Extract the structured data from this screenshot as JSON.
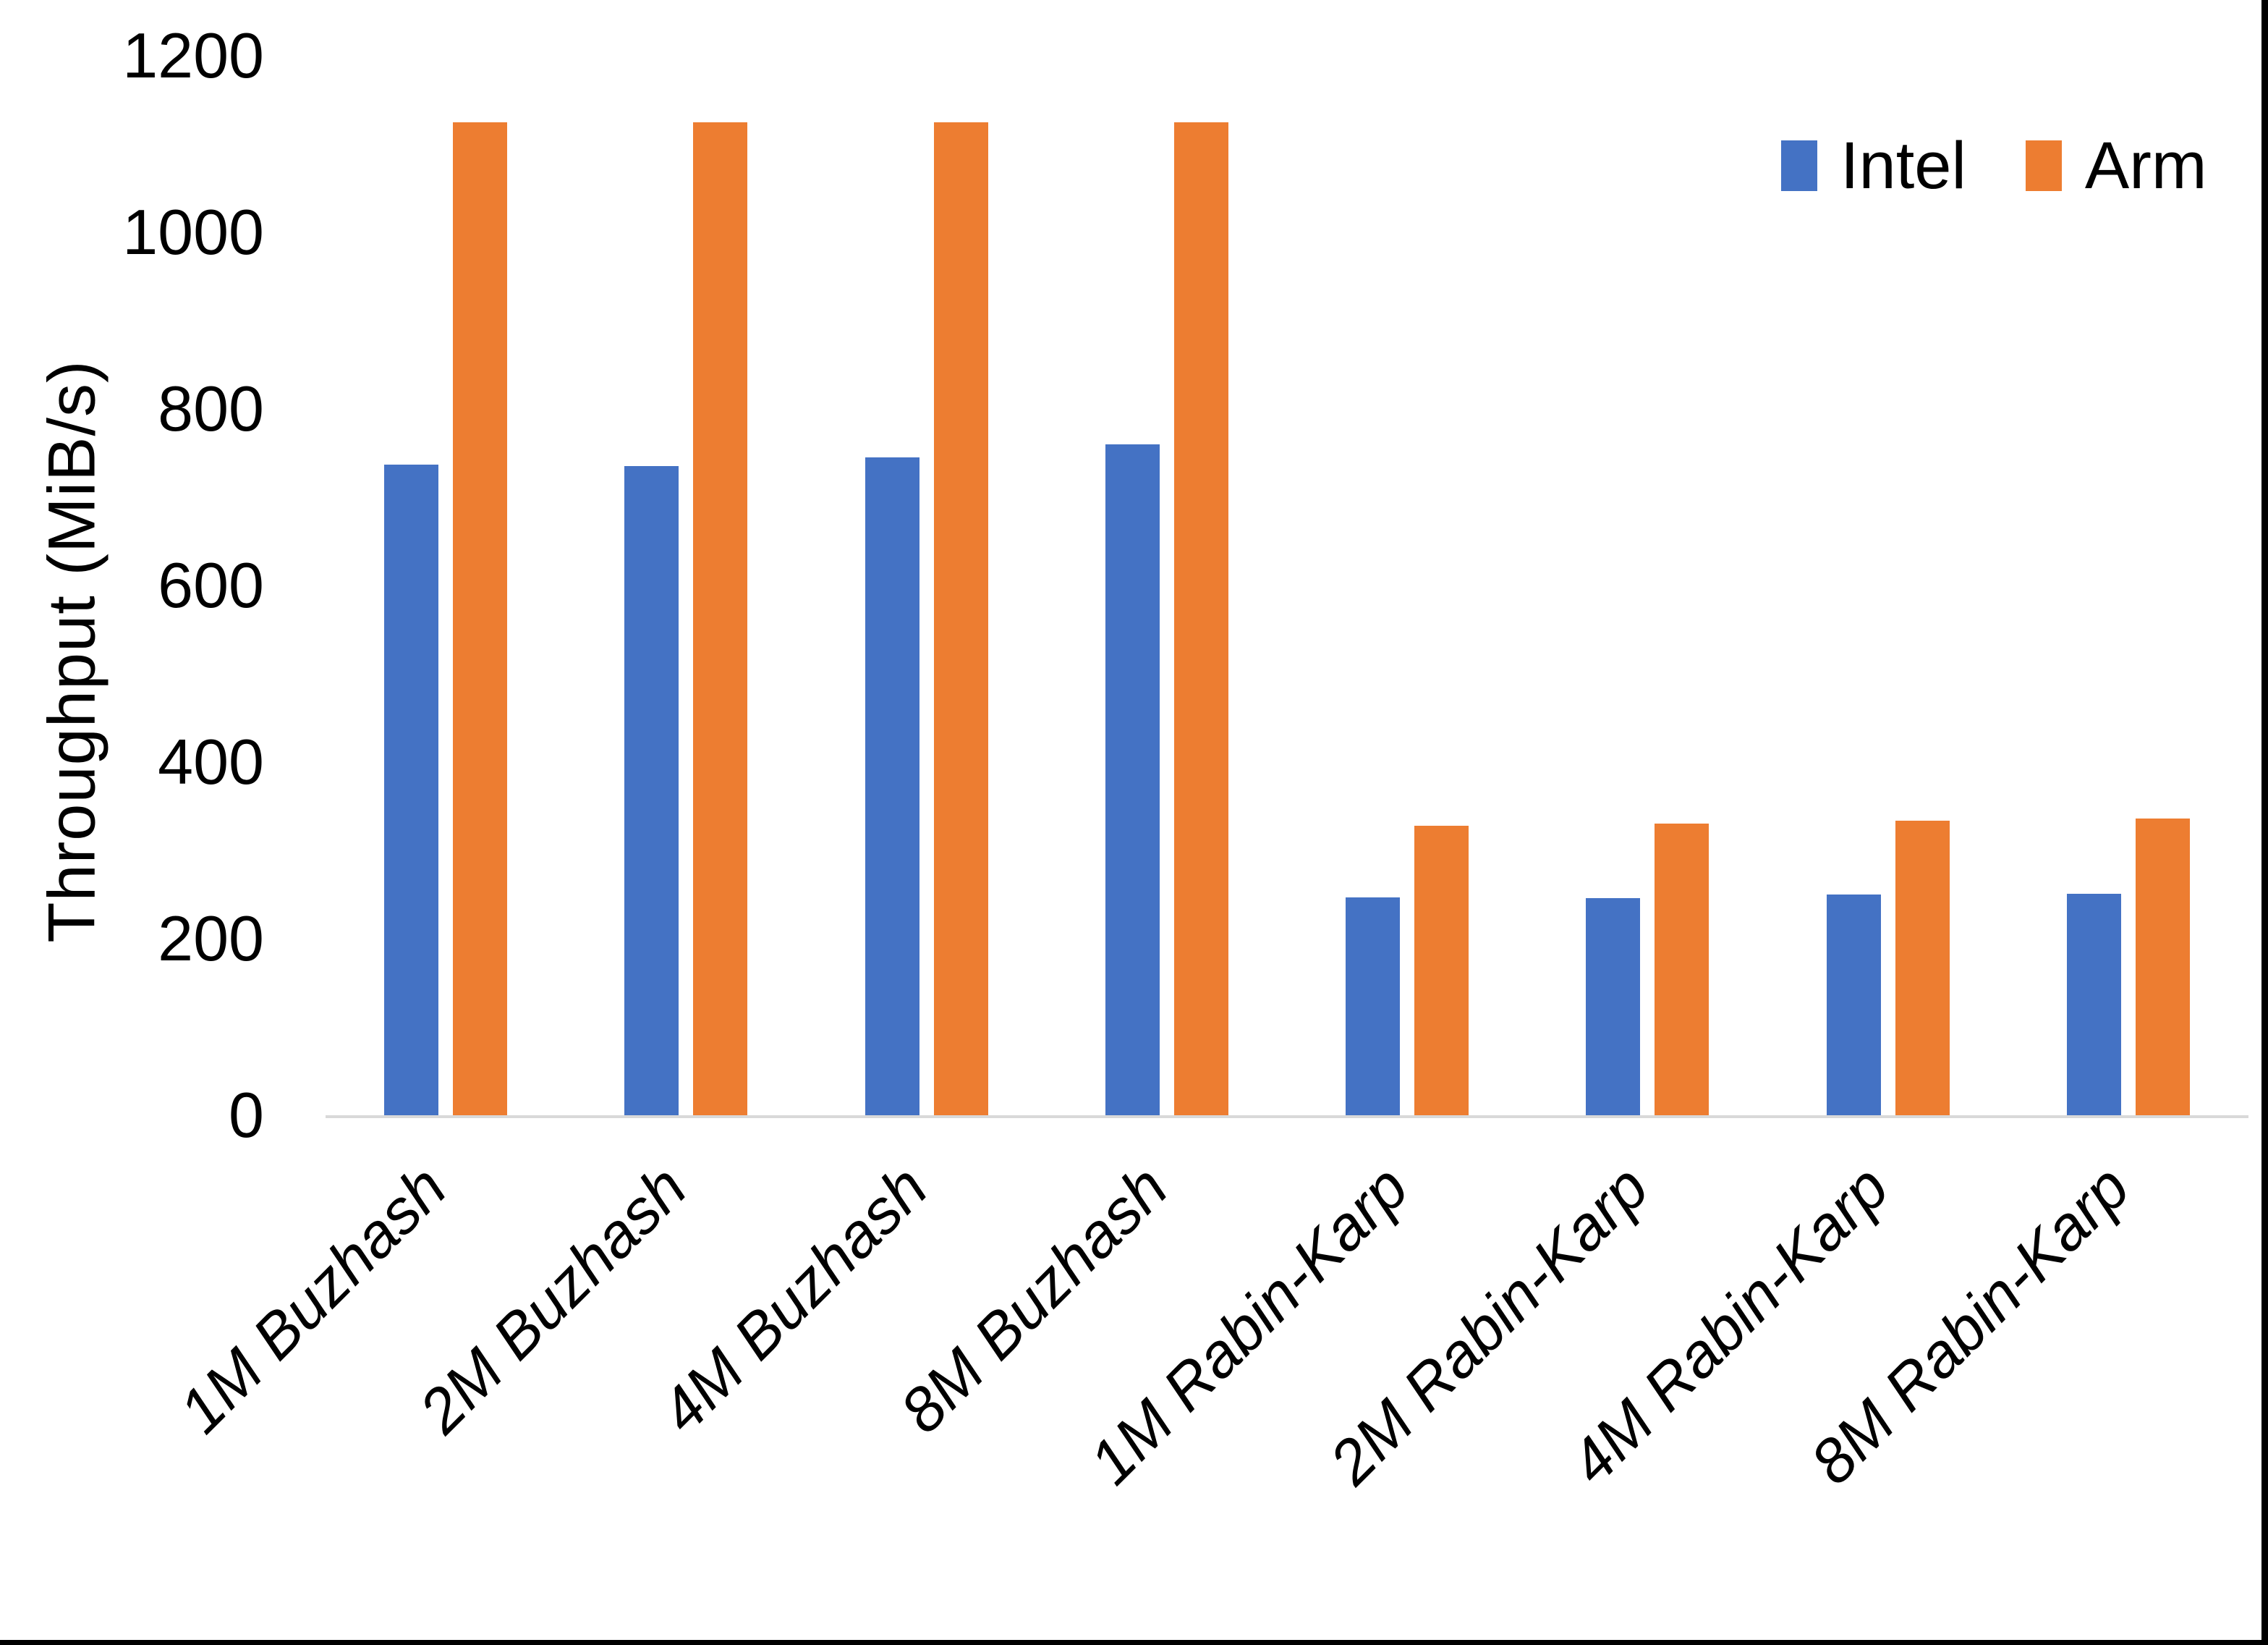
{
  "chart_data": {
    "type": "bar",
    "title": "",
    "xlabel": "",
    "ylabel": "Throughput (MiB/s)",
    "ylim": [
      0,
      1200
    ],
    "yticks": [
      0,
      200,
      400,
      600,
      800,
      1000,
      1200
    ],
    "grid": false,
    "legend_position": "top-right",
    "categories": [
      "1M Buzhash",
      "2M Buzhash",
      "4M Buzhash",
      "8M Buzhash",
      "1M Rabin-Karp",
      "2M Rabin-Karp",
      "4M Rabin-Karp",
      "8M Rabin-Karp"
    ],
    "series": [
      {
        "name": "Intel",
        "color": "#4472C4",
        "values": [
          737,
          735,
          745,
          760,
          247,
          246,
          250,
          251
        ]
      },
      {
        "name": "Arm",
        "color": "#ED7D31",
        "values": [
          1125,
          1125,
          1125,
          1125,
          328,
          330,
          334,
          336
        ]
      }
    ]
  },
  "styles": {
    "axis_line_color": "#D9D9D9",
    "text_color": "#000000",
    "background_color": "#FFFFFF",
    "frame_border_color": "#000000"
  }
}
